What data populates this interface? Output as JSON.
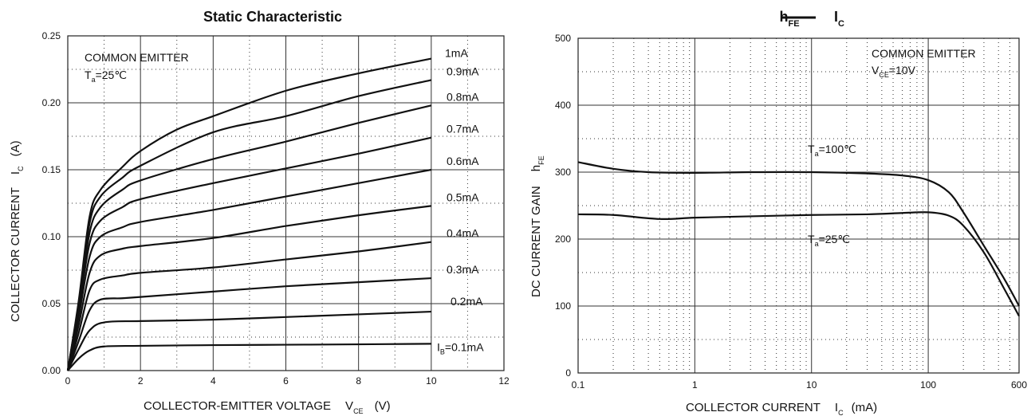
{
  "chart_data": [
    {
      "type": "line",
      "title": "Static Characteristic",
      "xlabel": "COLLECTOR-EMITTER VOLTAGE",
      "xlabel_symbol": "V",
      "xlabel_subscript": "CE",
      "xlabel_unit": "(V)",
      "ylabel": "COLLECTOR CURRENT",
      "ylabel_symbol": "I",
      "ylabel_subscript": "C",
      "ylabel_unit": "(A)",
      "xlim": [
        0,
        12
      ],
      "ylim": [
        0,
        0.25
      ],
      "x_ticks": [
        "0",
        "2",
        "4",
        "6",
        "8",
        "10",
        "12"
      ],
      "y_ticks": [
        "0.00",
        "0.05",
        "0.10",
        "0.15",
        "0.20",
        "0.25"
      ],
      "grid": "major solid, minor dotted",
      "annotations": {
        "line1": "COMMON EMITTER",
        "line2_symbol": "T",
        "line2_subscript": "a",
        "line2_value": "=25℃"
      },
      "series": [
        {
          "name": "I_B=0.1mA",
          "label": "=0.1mA",
          "label_symbol": "I",
          "label_subscript": "B",
          "x": [
            0,
            0.3,
            0.6,
            1.0,
            2,
            4,
            6,
            8,
            10
          ],
          "y": [
            0,
            0.009,
            0.015,
            0.018,
            0.0185,
            0.019,
            0.0193,
            0.0196,
            0.02
          ]
        },
        {
          "name": "0.2mA",
          "label": "0.2mA",
          "x": [
            0,
            0.3,
            0.6,
            1.0,
            2,
            4,
            6,
            8,
            10
          ],
          "y": [
            0,
            0.016,
            0.03,
            0.036,
            0.037,
            0.038,
            0.04,
            0.042,
            0.044
          ]
        },
        {
          "name": "0.3mA",
          "label": "0.3mA",
          "x": [
            0,
            0.3,
            0.6,
            0.9,
            1.5,
            2,
            4,
            6,
            8,
            10
          ],
          "y": [
            0,
            0.022,
            0.045,
            0.053,
            0.054,
            0.055,
            0.059,
            0.063,
            0.066,
            0.069
          ]
        },
        {
          "name": "0.4mA",
          "label": "0.4mA",
          "x": [
            0,
            0.3,
            0.6,
            0.9,
            1.5,
            2,
            4,
            6,
            8,
            10
          ],
          "y": [
            0,
            0.028,
            0.06,
            0.068,
            0.071,
            0.073,
            0.077,
            0.083,
            0.089,
            0.096
          ]
        },
        {
          "name": "0.5mA",
          "label": "0.5mA",
          "x": [
            0,
            0.3,
            0.6,
            0.9,
            1.5,
            2,
            4,
            6,
            8,
            10
          ],
          "y": [
            0,
            0.034,
            0.073,
            0.086,
            0.091,
            0.093,
            0.099,
            0.108,
            0.116,
            0.123
          ]
        },
        {
          "name": "0.6mA",
          "label": "0.6mA",
          "x": [
            0,
            0.3,
            0.6,
            0.9,
            1.5,
            2,
            4,
            6,
            8,
            10
          ],
          "y": [
            0,
            0.04,
            0.085,
            0.1,
            0.107,
            0.111,
            0.12,
            0.13,
            0.14,
            0.15
          ]
        },
        {
          "name": "0.7mA",
          "label": "0.7mA",
          "x": [
            0,
            0.3,
            0.6,
            0.9,
            1.5,
            2,
            4,
            6,
            8,
            10
          ],
          "y": [
            0,
            0.045,
            0.095,
            0.112,
            0.122,
            0.128,
            0.14,
            0.151,
            0.162,
            0.174
          ]
        },
        {
          "name": "0.8mA",
          "label": "0.8mA",
          "x": [
            0,
            0.3,
            0.6,
            0.9,
            1.5,
            2,
            4,
            6,
            8,
            10
          ],
          "y": [
            0,
            0.048,
            0.103,
            0.122,
            0.135,
            0.142,
            0.158,
            0.171,
            0.185,
            0.198
          ]
        },
        {
          "name": "0.9mA",
          "label": "0.9mA",
          "x": [
            0,
            0.3,
            0.6,
            0.9,
            1.5,
            2,
            4,
            6,
            8,
            10
          ],
          "y": [
            0,
            0.05,
            0.11,
            0.13,
            0.144,
            0.153,
            0.178,
            0.19,
            0.205,
            0.217
          ]
        },
        {
          "name": "1mA",
          "label": "1mA",
          "x": [
            0,
            0.3,
            0.6,
            0.9,
            1.5,
            2,
            3,
            4,
            6,
            8,
            10
          ],
          "y": [
            0,
            0.052,
            0.115,
            0.135,
            0.152,
            0.164,
            0.18,
            0.19,
            0.209,
            0.222,
            0.233
          ]
        }
      ]
    },
    {
      "type": "line",
      "x_scale": "log",
      "title_symbol_left": "h",
      "title_subscript_left": "FE",
      "title_symbol_right": "I",
      "title_subscript_right": "C",
      "xlabel": "COLLECTOR CURRENT",
      "xlabel_symbol": "I",
      "xlabel_subscript": "C",
      "xlabel_unit": "(mA)",
      "ylabel": "DC CURRENT GAIN",
      "ylabel_symbol": "h",
      "ylabel_subscript": "FE",
      "xlim": [
        0.1,
        600
      ],
      "ylim": [
        0,
        500
      ],
      "x_ticks": [
        "0.1",
        "1",
        "10",
        "100",
        "600"
      ],
      "y_ticks": [
        "0",
        "100",
        "200",
        "300",
        "400",
        "500"
      ],
      "grid": "major solid, minor dotted",
      "annotations": {
        "line1": "COMMON EMITTER",
        "line2_symbol": "V",
        "line2_subscript": "CE",
        "line2_value": "=10V"
      },
      "series": [
        {
          "name": "Ta=100℃",
          "label_symbol": "T",
          "label_subscript": "a",
          "label": "=100℃",
          "x": [
            0.1,
            0.2,
            0.4,
            1,
            3,
            10,
            30,
            60,
            100,
            150,
            200,
            300,
            450,
            600
          ],
          "y": [
            315,
            305,
            300,
            299,
            300,
            300,
            298,
            295,
            288,
            270,
            240,
            190,
            140,
            100
          ]
        },
        {
          "name": "Ta=25℃",
          "label_symbol": "T",
          "label_subscript": "a",
          "label": "=25℃",
          "x": [
            0.1,
            0.2,
            0.5,
            1,
            3,
            10,
            30,
            60,
            100,
            150,
            200,
            300,
            450,
            600
          ],
          "y": [
            237,
            236,
            230,
            232,
            234,
            236,
            237,
            239,
            240,
            235,
            220,
            180,
            125,
            85
          ]
        }
      ]
    }
  ]
}
